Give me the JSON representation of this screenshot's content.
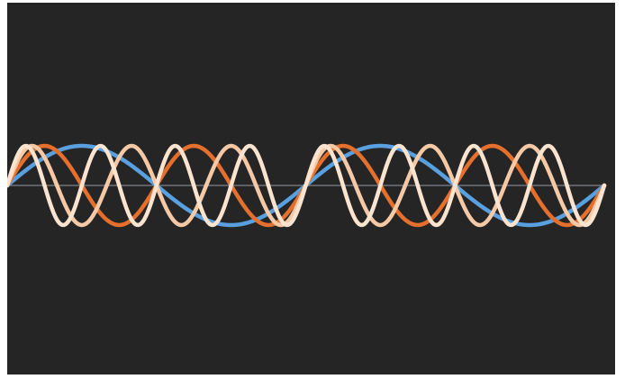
{
  "chart_data": {
    "type": "line",
    "title": "",
    "xlabel": "",
    "ylabel": "",
    "x_range": [
      0,
      2
    ],
    "y_range": [
      -1.15,
      1.15
    ],
    "grid": false,
    "legend": "none",
    "background_color": "#252525",
    "zero_line_color": "#6f757a",
    "series": [
      {
        "frequency": 1,
        "amplitude": 1,
        "samples": 400,
        "color": "#58a0e0"
      },
      {
        "frequency": 2,
        "amplitude": 1,
        "samples": 400,
        "color": "#e5702e"
      },
      {
        "frequency": 3,
        "amplitude": 1,
        "samples": 400,
        "color": "#f5c9a5"
      },
      {
        "frequency": 4,
        "amplitude": 1,
        "samples": 400,
        "color": "#fbe4cf"
      }
    ]
  }
}
